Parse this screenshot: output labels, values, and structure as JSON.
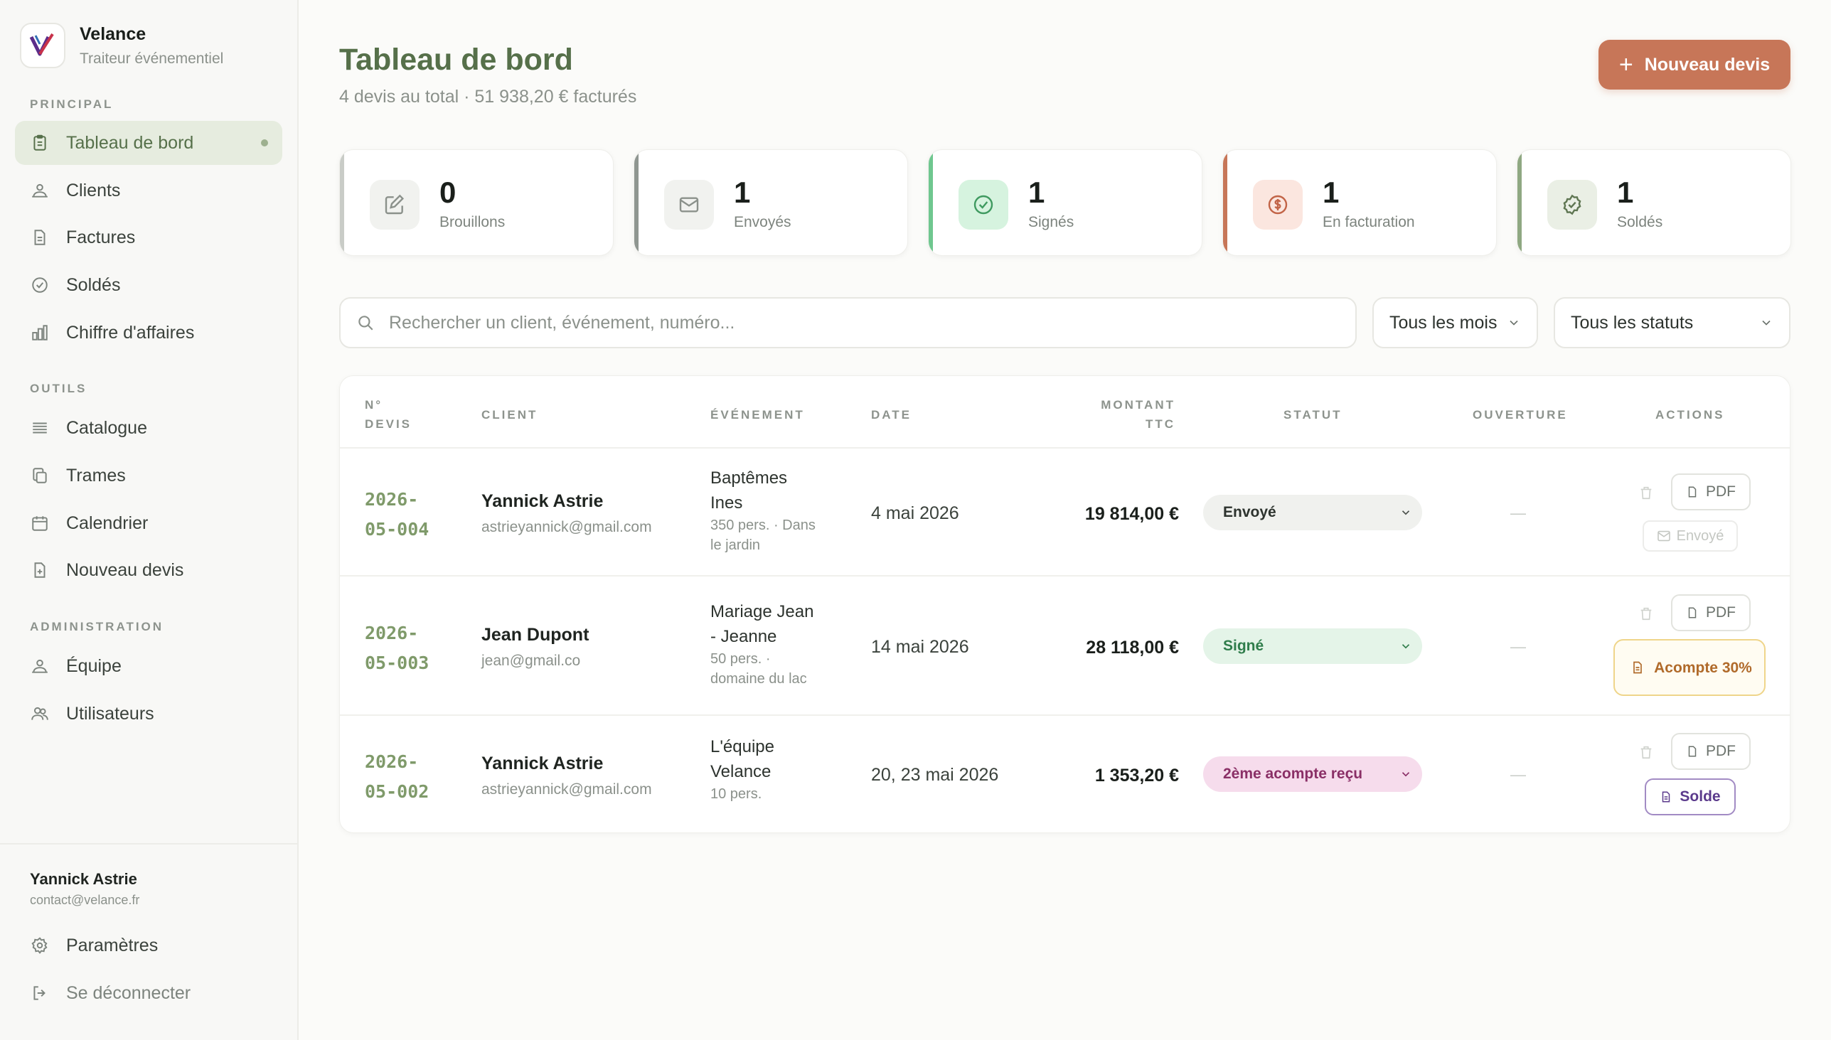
{
  "brand": {
    "name": "Velance",
    "tagline": "Traiteur événementiel"
  },
  "sidebar": {
    "sections": [
      {
        "title": "PRINCIPAL"
      },
      {
        "title": "OUTILS"
      },
      {
        "title": "ADMINISTRATION"
      }
    ],
    "items": [
      {
        "label": "Tableau de bord",
        "icon": "clipboard-icon",
        "active": true
      },
      {
        "label": "Clients",
        "icon": "users-icon"
      },
      {
        "label": "Factures",
        "icon": "file-icon"
      },
      {
        "label": "Soldés",
        "icon": "check-circle-icon"
      },
      {
        "label": "Chiffre d'affaires",
        "icon": "bar-chart-icon"
      },
      {
        "label": "Catalogue",
        "icon": "list-icon"
      },
      {
        "label": "Trames",
        "icon": "copy-icon"
      },
      {
        "label": "Calendrier",
        "icon": "calendar-icon"
      },
      {
        "label": "Nouveau devis",
        "icon": "file-plus-icon"
      },
      {
        "label": "Équipe",
        "icon": "team-icon"
      },
      {
        "label": "Utilisateurs",
        "icon": "user-group-icon"
      }
    ],
    "user": {
      "name": "Yannick Astrie",
      "email": "contact@velance.fr"
    },
    "footer_items": [
      {
        "label": "Paramètres",
        "icon": "gear-icon"
      },
      {
        "label": "Se déconnecter",
        "icon": "logout-icon"
      }
    ]
  },
  "header": {
    "title": "Tableau de bord",
    "subtitle": "4 devis au total · 51 938,20 € facturés",
    "new_button": "Nouveau devis"
  },
  "stats": [
    {
      "value": "0",
      "label": "Brouillons",
      "icon": "edit-icon",
      "color": "#c9ccc7"
    },
    {
      "value": "1",
      "label": "Envoyés",
      "icon": "mail-icon",
      "color": "#8f9691"
    },
    {
      "value": "1",
      "label": "Signés",
      "icon": "check-circle-icon",
      "color": "#6fc78f"
    },
    {
      "value": "1",
      "label": "En facturation",
      "icon": "dollar-icon",
      "color": "#c77658"
    },
    {
      "value": "1",
      "label": "Soldés",
      "icon": "check-badge-icon",
      "color": "#8fa882"
    }
  ],
  "filters": {
    "search_placeholder": "Rechercher un client, événement, numéro...",
    "month": "Tous les mois",
    "status": "Tous les statuts"
  },
  "table": {
    "headers": [
      "N° DEVIS",
      "CLIENT",
      "ÉVÉNEMENT",
      "DATE",
      "MONTANT TTC",
      "STATUT",
      "OUVERTURE",
      "ACTIONS"
    ],
    "rows": [
      {
        "number": "2026-05-004",
        "client": "Yannick Astrie",
        "email": "astrieyannick@gmail.com",
        "event": "Baptêmes Ines",
        "event_details": "350 pers. · Dans le jardin",
        "date": "4 mai 2026",
        "amount": "19 814,00 €",
        "status": "Envoyé",
        "opening": "—",
        "actions": {
          "pdf": "PDF",
          "secondary": "Envoyé"
        }
      },
      {
        "number": "2026-05-003",
        "client": "Jean Dupont",
        "email": "jean@gmail.co",
        "event": "Mariage Jean - Jeanne",
        "event_details": "50 pers. · domaine du lac",
        "date": "14 mai 2026",
        "amount": "28 118,00 €",
        "status": "Signé",
        "opening": "—",
        "actions": {
          "pdf": "PDF",
          "secondary": "Acompte 30%"
        }
      },
      {
        "number": "2026-05-002",
        "client": "Yannick Astrie",
        "email": "astrieyannick@gmail.com",
        "event": "L'équipe Velance",
        "event_details": "10 pers.",
        "date": "20, 23 mai 2026",
        "amount": "1 353,20 €",
        "status": "2ème acompte reçu",
        "opening": "—",
        "actions": {
          "pdf": "PDF",
          "secondary": "Solde"
        }
      }
    ]
  },
  "colors": {
    "accent_green": "#56704a",
    "brand_terracotta": "#c77658",
    "status_sent_bg": "#f0f1ee",
    "status_signed_bg": "#e4f4e8",
    "status_deposit_bg": "#f6dcec"
  }
}
